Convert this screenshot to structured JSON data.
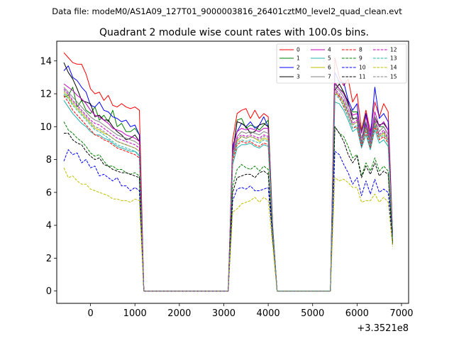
{
  "suptitle": "Data file: modeM0/AS1A09_127T01_9000003816_26401cztM0_level2_quad_clean.evt",
  "chart_data": {
    "type": "line",
    "title": "Quadrant 2 module wise count rates with 100.0s bins.",
    "xlabel": "",
    "ylabel": "",
    "x_offset_label": "+3.3521e8",
    "xlim": [
      -760,
      7160
    ],
    "ylim": [
      -0.75,
      15.2
    ],
    "xticks": [
      0,
      1000,
      2000,
      3000,
      4000,
      5000,
      6000,
      7000
    ],
    "xtick_labels": [
      "0",
      "1000",
      "2000",
      "3000",
      "4000",
      "5000",
      "6000",
      "7000"
    ],
    "yticks": [
      0,
      2,
      4,
      6,
      8,
      10,
      12,
      14
    ],
    "ytick_labels": [
      "0",
      "2",
      "4",
      "6",
      "8",
      "10",
      "12",
      "14"
    ],
    "legend_position": "top-right",
    "legend_columns": 4,
    "segments": [
      {
        "x_start": -600,
        "x_end": 1300,
        "step": 100
      },
      {
        "x_start": 1400,
        "x_end": 3100,
        "step": 100
      },
      {
        "x_start": 3200,
        "x_end": 4200,
        "step": 100
      },
      {
        "x_start": 4300,
        "x_end": 5400,
        "step": 100
      },
      {
        "x_start": 5500,
        "x_end": 6800,
        "step": 100
      }
    ],
    "series": [
      {
        "name": "0",
        "color": "#ff0000",
        "dash": false,
        "orbit1": [
          14.5,
          14.2,
          13.9,
          13.8,
          13.8,
          13.2,
          12.3,
          12.0,
          12.1,
          11.6,
          11.9,
          11.3,
          11.2,
          11.4,
          11.2,
          11.1,
          11.2,
          11.0,
          0.0
        ],
        "orbit2": [
          0.0,
          9.2,
          10.8,
          11.0,
          11.1,
          10.5,
          11.0,
          10.5,
          10.8,
          10.6,
          3.9
        ],
        "orbit3": [
          0.0,
          14.2,
          13.0,
          12.5,
          12.9,
          11.5,
          12.0,
          9.8,
          11.0,
          9.7,
          11.5,
          10.6,
          11.4,
          10.9,
          3.5
        ]
      },
      {
        "name": "1",
        "color": "#008000",
        "dash": false,
        "orbit1": [
          11.8,
          11.9,
          12.4,
          11.2,
          11.6,
          11.0,
          10.8,
          11.2,
          10.4,
          10.7,
          10.3,
          11.0,
          10.0,
          10.2,
          9.7,
          9.7,
          9.9,
          9.5,
          0.0
        ],
        "orbit2": [
          0.0,
          8.3,
          10.4,
          10.5,
          9.9,
          10.1,
          10.0,
          9.8,
          10.1,
          10.4,
          4.0
        ],
        "orbit3": [
          0.0,
          12.6,
          12.3,
          12.1,
          11.3,
          10.9,
          10.9,
          9.7,
          10.8,
          9.2,
          10.6,
          10.0,
          10.0,
          9.5,
          3.5
        ]
      },
      {
        "name": "2",
        "color": "#0000ff",
        "dash": false,
        "orbit1": [
          13.4,
          13.7,
          13.0,
          12.8,
          12.4,
          12.1,
          11.3,
          11.2,
          11.5,
          11.0,
          10.9,
          10.6,
          10.5,
          10.3,
          10.4,
          10.0,
          10.1,
          9.5,
          0.0
        ],
        "orbit2": [
          0.0,
          8.8,
          9.7,
          10.2,
          10.0,
          10.3,
          9.9,
          10.1,
          10.6,
          10.0,
          3.8
        ],
        "orbit3": [
          0.0,
          13.3,
          12.7,
          12.7,
          11.6,
          11.0,
          11.4,
          8.8,
          10.8,
          9.4,
          12.4,
          10.5,
          10.8,
          10.3,
          3.4
        ]
      },
      {
        "name": "3",
        "color": "#000000",
        "dash": false,
        "orbit1": [
          13.9,
          13.3,
          12.9,
          12.3,
          11.6,
          11.5,
          11.4,
          10.6,
          10.7,
          10.4,
          10.4,
          10.0,
          9.7,
          9.5,
          9.2,
          9.3,
          9.5,
          9.1,
          0.0
        ],
        "orbit2": [
          0.0,
          8.4,
          10.3,
          10.2,
          10.0,
          9.6,
          9.7,
          10.1,
          10.2,
          10.0,
          3.7
        ],
        "orbit3": [
          0.0,
          12.2,
          12.6,
          12.1,
          11.5,
          10.5,
          10.5,
          9.0,
          10.2,
          8.9,
          10.5,
          10.1,
          10.2,
          9.8,
          3.3
        ]
      },
      {
        "name": "4",
        "color": "#bf00bf",
        "dash": false,
        "orbit1": [
          12.6,
          12.4,
          12.2,
          11.9,
          11.7,
          11.4,
          11.0,
          10.7,
          10.6,
          10.4,
          10.2,
          9.9,
          9.8,
          9.7,
          9.5,
          9.4,
          9.3,
          9.1,
          0.0
        ],
        "orbit2": [
          0.0,
          8.6,
          9.7,
          9.9,
          9.8,
          9.9,
          9.8,
          9.7,
          9.9,
          9.9,
          3.8
        ],
        "orbit3": [
          0.0,
          12.7,
          12.3,
          12.0,
          11.4,
          10.7,
          10.8,
          9.6,
          10.6,
          9.4,
          10.9,
          10.0,
          10.3,
          9.8,
          3.4
        ]
      },
      {
        "name": "5",
        "color": "#20b2aa",
        "dash": false,
        "orbit1": [
          11.6,
          11.2,
          10.8,
          10.5,
          10.2,
          10.0,
          9.7,
          9.5,
          9.5,
          9.3,
          9.2,
          9.0,
          8.8,
          8.7,
          8.6,
          8.5,
          8.5,
          8.2,
          0.0
        ],
        "orbit2": [
          0.0,
          7.7,
          8.7,
          8.9,
          8.9,
          9.0,
          8.8,
          8.7,
          8.9,
          8.8,
          3.6
        ],
        "orbit3": [
          0.0,
          11.5,
          11.4,
          11.0,
          10.4,
          9.7,
          9.9,
          8.7,
          9.5,
          8.6,
          9.8,
          9.0,
          9.2,
          8.8,
          3.3
        ]
      },
      {
        "name": "6",
        "color": "#bfbf00",
        "dash": false,
        "orbit1": [
          12.1,
          11.8,
          11.4,
          11.1,
          10.8,
          10.5,
          10.2,
          9.9,
          9.8,
          9.6,
          9.5,
          9.3,
          9.1,
          9.0,
          8.9,
          8.8,
          8.7,
          8.5,
          0.0
        ],
        "orbit2": [
          0.0,
          8.1,
          9.1,
          9.4,
          9.3,
          9.4,
          9.3,
          9.1,
          9.3,
          9.2,
          3.6
        ],
        "orbit3": [
          0.0,
          12.0,
          11.9,
          11.4,
          10.8,
          10.1,
          10.3,
          9.0,
          9.9,
          8.9,
          10.2,
          9.4,
          9.6,
          9.2,
          3.3
        ]
      },
      {
        "name": "7",
        "color": "#808080",
        "dash": false,
        "orbit1": [
          12.4,
          12.1,
          11.8,
          11.5,
          11.2,
          10.9,
          10.6,
          10.4,
          10.3,
          10.1,
          9.9,
          9.7,
          9.5,
          9.4,
          9.3,
          9.2,
          9.1,
          8.9,
          0.0
        ],
        "orbit2": [
          0.0,
          8.4,
          9.4,
          9.7,
          9.6,
          9.7,
          9.6,
          9.5,
          9.7,
          9.6,
          3.7
        ],
        "orbit3": [
          0.0,
          12.4,
          12.2,
          11.8,
          11.1,
          10.4,
          10.6,
          9.3,
          10.3,
          9.2,
          10.6,
          9.7,
          10.0,
          9.5,
          3.4
        ]
      },
      {
        "name": "8",
        "color": "#ff0000",
        "dash": true,
        "orbit1": [
          11.9,
          11.5,
          11.0,
          10.7,
          10.4,
          10.1,
          9.8,
          9.5,
          9.4,
          9.2,
          9.1,
          8.9,
          8.7,
          8.6,
          8.5,
          8.4,
          8.3,
          8.1,
          0.0
        ],
        "orbit2": [
          0.0,
          7.9,
          8.9,
          9.1,
          9.0,
          9.1,
          8.9,
          8.8,
          9.0,
          8.9,
          3.6
        ],
        "orbit3": [
          0.0,
          12.2,
          11.8,
          11.2,
          10.6,
          9.9,
          10.0,
          8.8,
          9.7,
          8.7,
          10.0,
          9.2,
          9.4,
          9.0,
          3.3
        ]
      },
      {
        "name": "9",
        "color": "#008000",
        "dash": true,
        "orbit1": [
          10.3,
          9.8,
          9.6,
          9.3,
          9.1,
          8.8,
          8.4,
          8.2,
          8.3,
          7.9,
          7.6,
          7.6,
          7.4,
          7.4,
          7.2,
          7.1,
          7.2,
          7.0,
          0.0
        ],
        "orbit2": [
          0.0,
          6.4,
          7.4,
          7.7,
          7.5,
          7.4,
          7.6,
          7.3,
          7.6,
          7.4,
          3.3
        ],
        "orbit3": [
          0.0,
          10.0,
          9.6,
          9.4,
          8.8,
          8.1,
          8.3,
          7.0,
          7.8,
          7.3,
          8.1,
          7.3,
          7.6,
          7.3,
          3.0
        ]
      },
      {
        "name": "10",
        "color": "#0000ff",
        "dash": true,
        "orbit1": [
          7.9,
          8.6,
          8.3,
          8.4,
          7.8,
          8.0,
          7.5,
          7.6,
          7.0,
          7.1,
          6.9,
          6.7,
          6.9,
          6.4,
          6.4,
          6.1,
          6.3,
          6.1,
          0.0
        ],
        "orbit2": [
          0.0,
          5.5,
          6.2,
          6.3,
          6.2,
          6.4,
          6.1,
          6.1,
          6.2,
          6.3,
          3.2
        ],
        "orbit3": [
          0.0,
          8.5,
          8.3,
          7.7,
          7.2,
          6.5,
          6.9,
          5.8,
          6.7,
          5.9,
          6.8,
          6.0,
          6.2,
          6.0,
          2.8
        ]
      },
      {
        "name": "11",
        "color": "#000000",
        "dash": true,
        "orbit1": [
          9.6,
          9.6,
          9.2,
          9.0,
          8.9,
          8.5,
          8.2,
          8.0,
          8.1,
          7.7,
          7.6,
          7.4,
          7.3,
          7.2,
          7.2,
          7.1,
          7.0,
          6.9,
          0.0
        ],
        "orbit2": [
          0.0,
          6.0,
          6.9,
          7.0,
          7.1,
          7.1,
          6.9,
          7.2,
          7.3,
          7.1,
          3.2
        ],
        "orbit3": [
          0.0,
          10.0,
          9.6,
          9.1,
          8.3,
          7.8,
          8.2,
          6.9,
          7.6,
          7.1,
          7.8,
          7.0,
          7.3,
          7.1,
          2.9
        ]
      },
      {
        "name": "12",
        "color": "#bf00bf",
        "dash": true,
        "orbit1": [
          12.3,
          12.0,
          11.6,
          11.3,
          11.0,
          10.7,
          10.4,
          10.2,
          10.1,
          9.9,
          9.7,
          9.5,
          9.3,
          9.2,
          9.1,
          9.0,
          8.9,
          8.7,
          0.0
        ],
        "orbit2": [
          0.0,
          8.3,
          9.3,
          9.5,
          9.4,
          9.5,
          9.4,
          9.3,
          9.5,
          9.4,
          3.7
        ],
        "orbit3": [
          0.0,
          12.3,
          12.0,
          11.6,
          10.9,
          10.2,
          10.4,
          9.1,
          10.1,
          9.0,
          10.4,
          9.5,
          9.8,
          9.3,
          3.4
        ]
      },
      {
        "name": "13",
        "color": "#20b2aa",
        "dash": true,
        "orbit1": [
          12.0,
          11.7,
          11.3,
          11.0,
          10.7,
          10.4,
          10.1,
          9.8,
          9.7,
          9.5,
          9.3,
          9.1,
          8.9,
          8.8,
          8.7,
          8.6,
          8.5,
          8.3,
          0.0
        ],
        "orbit2": [
          0.0,
          8.1,
          9.0,
          9.2,
          9.1,
          9.2,
          9.1,
          9.0,
          9.2,
          9.1,
          3.6
        ],
        "orbit3": [
          0.0,
          12.0,
          11.7,
          11.3,
          10.6,
          9.9,
          10.1,
          8.9,
          9.8,
          8.8,
          10.1,
          9.3,
          9.5,
          9.1,
          3.3
        ]
      },
      {
        "name": "14",
        "color": "#bfbf00",
        "dash": true,
        "orbit1": [
          7.5,
          6.9,
          7.0,
          6.7,
          6.5,
          6.5,
          6.2,
          6.1,
          6.0,
          5.9,
          5.8,
          5.6,
          5.6,
          5.5,
          5.5,
          5.4,
          5.6,
          5.5,
          0.0
        ],
        "orbit2": [
          0.0,
          4.8,
          5.0,
          5.3,
          5.4,
          5.5,
          5.7,
          5.4,
          5.7,
          5.5,
          2.8
        ],
        "orbit3": [
          0.0,
          6.9,
          6.7,
          6.8,
          6.6,
          6.3,
          6.3,
          5.4,
          5.5,
          5.5,
          5.9,
          5.4,
          5.7,
          5.4,
          2.7
        ]
      },
      {
        "name": "15",
        "color": "#808080",
        "dash": true,
        "orbit1": [
          12.2,
          11.9,
          11.5,
          11.2,
          10.9,
          10.6,
          10.3,
          10.0,
          9.9,
          9.7,
          9.5,
          9.3,
          9.1,
          9.0,
          8.9,
          8.8,
          8.7,
          8.5,
          0.0
        ],
        "orbit2": [
          0.0,
          8.2,
          9.2,
          9.4,
          9.3,
          9.4,
          9.3,
          9.2,
          9.4,
          9.3,
          3.6
        ],
        "orbit3": [
          0.0,
          12.2,
          11.9,
          11.5,
          10.8,
          10.1,
          10.3,
          9.0,
          10.0,
          8.9,
          10.3,
          9.4,
          9.7,
          9.2,
          3.4
        ]
      }
    ]
  }
}
